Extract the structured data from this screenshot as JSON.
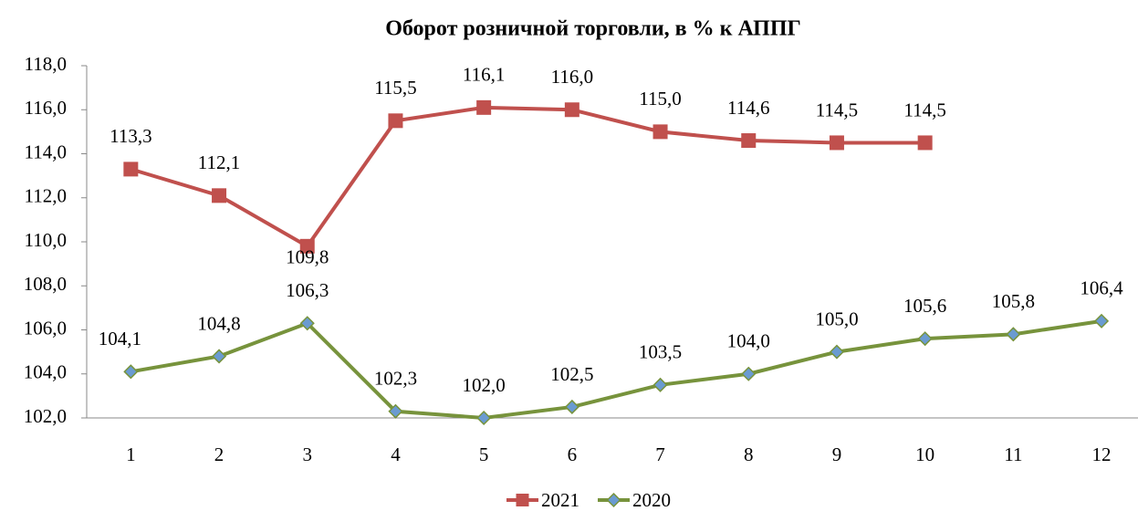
{
  "chart_data": {
    "type": "line",
    "title": "Оборот розничной торговли, в % к АППГ",
    "categories": [
      "1",
      "2",
      "3",
      "4",
      "5",
      "6",
      "7",
      "8",
      "9",
      "10",
      "11",
      "12"
    ],
    "series": [
      {
        "name": "2021",
        "color": "#c0504d",
        "marker": "square",
        "values": [
          113.3,
          112.1,
          109.8,
          115.5,
          116.1,
          116.0,
          115.0,
          114.6,
          114.5,
          114.5,
          null,
          null
        ],
        "value_labels": [
          "113,3",
          "112,1",
          "109,8",
          "115,5",
          "116,1",
          "116,0",
          "115,0",
          "114,6",
          "114,5",
          "114,5",
          null,
          null
        ]
      },
      {
        "name": "2020",
        "color": "#77933c",
        "marker": "diamond",
        "values": [
          104.1,
          104.8,
          106.3,
          102.3,
          102.0,
          102.5,
          103.5,
          104.0,
          105.0,
          105.6,
          105.8,
          106.4
        ],
        "value_labels": [
          "104,1",
          "104,8",
          "106,3",
          "102,3",
          "102,0",
          "102,5",
          "103,5",
          "104,0",
          "105,0",
          "105,6",
          "105,8",
          "106,4"
        ]
      }
    ],
    "ylim": [
      102,
      118
    ],
    "yticks": [
      {
        "value": 102,
        "label": "102,0"
      },
      {
        "value": 104,
        "label": "104,0"
      },
      {
        "value": 106,
        "label": "106,0"
      },
      {
        "value": 108,
        "label": "108,0"
      },
      {
        "value": 110,
        "label": "110,0"
      },
      {
        "value": 112,
        "label": "112,0"
      },
      {
        "value": 114,
        "label": "114,0"
      },
      {
        "value": 116,
        "label": "116,0"
      },
      {
        "value": 118,
        "label": "118,0"
      }
    ],
    "grid": false,
    "legend": "bottom"
  }
}
